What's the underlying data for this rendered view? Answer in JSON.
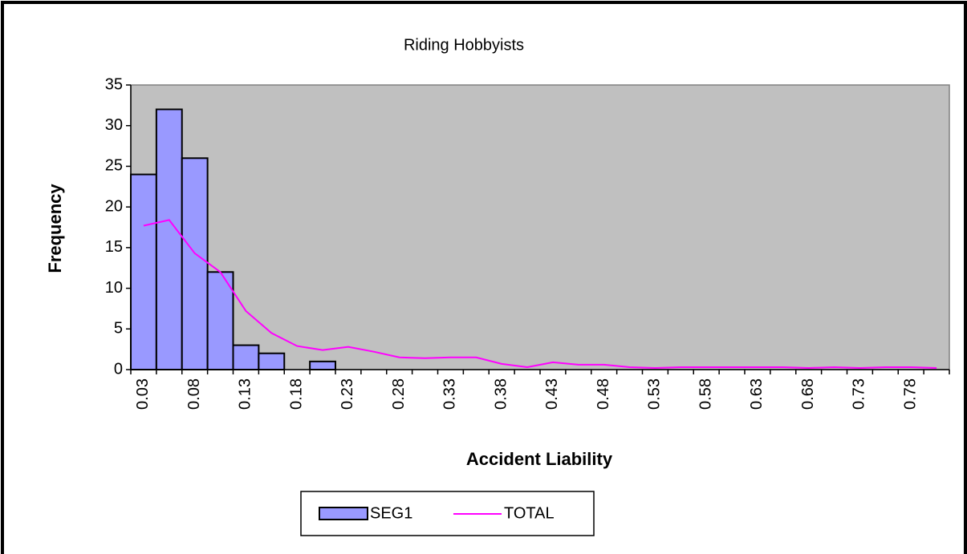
{
  "chart_data": {
    "type": "bar",
    "title": "Riding Hobbyists",
    "x_label": "Accident Liability",
    "y_label": "Frequency",
    "categories": [
      "0.03",
      null,
      "0.08",
      null,
      "0.13",
      null,
      "0.18",
      null,
      "0.23",
      null,
      "0.28",
      null,
      "0.33",
      null,
      "0.38",
      null,
      "0.43",
      null,
      "0.48",
      null,
      "0.53",
      null,
      "0.58",
      null,
      "0.63",
      null,
      "0.68",
      null,
      "0.73",
      null,
      "0.78",
      null
    ],
    "series": [
      {
        "name": "SEG1",
        "type": "bar",
        "color": "#9999ff",
        "values": [
          24,
          32,
          26,
          12,
          3,
          2,
          0,
          1,
          0,
          0,
          0,
          0,
          0,
          0,
          0,
          0,
          0,
          0,
          0,
          0,
          0,
          0,
          0,
          0,
          0,
          0,
          0,
          0,
          0,
          0,
          0,
          0
        ]
      },
      {
        "name": "TOTAL",
        "type": "line",
        "color": "#ff00ff",
        "values": [
          17.7,
          18.4,
          14.3,
          12,
          7.2,
          4.5,
          2.9,
          2.4,
          2.8,
          2.2,
          1.5,
          1.4,
          1.5,
          1.5,
          0.7,
          0.3,
          0.9,
          0.6,
          0.6,
          0.3,
          0.2,
          0.3,
          0.3,
          0.3,
          0.3,
          0.3,
          0.2,
          0.3,
          0.2,
          0.3,
          0.3,
          0.2
        ]
      }
    ],
    "ylim": [
      0,
      35
    ],
    "yticks": [
      0,
      5,
      10,
      15,
      20,
      25,
      30,
      35
    ],
    "plot_background": "#c0c0c0",
    "legend": "bottom"
  }
}
